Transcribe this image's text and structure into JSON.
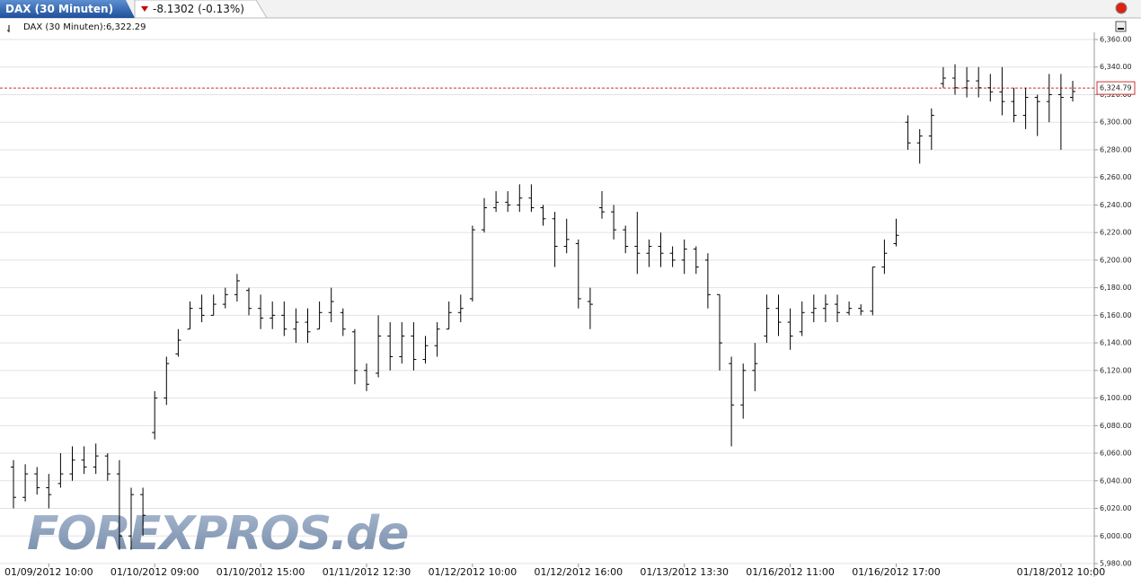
{
  "header": {
    "title": "DAX (30 Minuten)",
    "change": "-8.1302 (-0.13%)"
  },
  "chart_data": {
    "type": "ohlc",
    "legend": "DAX (30 Minuten):6,322.29",
    "watermark": "FOREXPROS.de",
    "color": "#000000",
    "grid": true,
    "last_price": {
      "value": 6324.79,
      "label": "6,324.79"
    },
    "last_price_color": "#cc3333",
    "ylim": [
      5980,
      6360
    ],
    "yticks": [
      {
        "value": 6360,
        "label": "6,360.00"
      },
      {
        "value": 6340,
        "label": "6,340.00"
      },
      {
        "value": 6320,
        "label": "6,320.00"
      },
      {
        "value": 6300,
        "label": "6,300.00"
      },
      {
        "value": 6280,
        "label": "6,280.00"
      },
      {
        "value": 6260,
        "label": "6,260.00"
      },
      {
        "value": 6240,
        "label": "6,240.00"
      },
      {
        "value": 6220,
        "label": "6,220.00"
      },
      {
        "value": 6200,
        "label": "6,200.00"
      },
      {
        "value": 6180,
        "label": "6,180.00"
      },
      {
        "value": 6160,
        "label": "6,160.00"
      },
      {
        "value": 6140,
        "label": "6,140.00"
      },
      {
        "value": 6120,
        "label": "6,120.00"
      },
      {
        "value": 6100,
        "label": "6,100.00"
      },
      {
        "value": 6080,
        "label": "6,080.00"
      },
      {
        "value": 6060,
        "label": "6,060.00"
      },
      {
        "value": 6040,
        "label": "6,040.00"
      },
      {
        "value": 6020,
        "label": "6,020.00"
      },
      {
        "value": 6000,
        "label": "6,000.00"
      },
      {
        "value": 5980,
        "label": "5,980.00"
      }
    ],
    "categories": [
      null,
      null,
      null,
      "01/09/2012 10:00",
      null,
      null,
      null,
      null,
      null,
      null,
      null,
      null,
      "01/10/2012 09:00",
      null,
      null,
      null,
      null,
      null,
      null,
      null,
      null,
      "01/10/2012 15:00",
      null,
      null,
      null,
      null,
      null,
      null,
      null,
      null,
      "01/11/2012 12:30",
      null,
      null,
      null,
      null,
      null,
      null,
      null,
      null,
      "01/12/2012 10:00",
      null,
      null,
      null,
      null,
      null,
      null,
      null,
      null,
      "01/12/2012 16:00",
      null,
      null,
      null,
      null,
      null,
      null,
      null,
      null,
      "01/13/2012 13:30",
      null,
      null,
      null,
      null,
      null,
      null,
      null,
      null,
      "01/16/2012 11:00",
      null,
      null,
      null,
      null,
      null,
      null,
      null,
      null,
      "01/16/2012 17:00",
      null,
      null,
      null,
      null,
      null,
      null,
      null,
      null,
      null,
      null,
      null,
      null,
      null,
      "01/18/2012 10:00",
      null
    ],
    "open": [
      6050,
      6028,
      6045,
      6035,
      6038,
      6045,
      6055,
      6050,
      6058,
      6045,
      6000,
      6030,
      6075,
      6100,
      6132,
      6150,
      6165,
      6160,
      6168,
      6175,
      6178,
      6165,
      6158,
      6160,
      6150,
      6155,
      6150,
      6162,
      6162,
      6148,
      6120,
      6118,
      6145,
      6130,
      6145,
      6128,
      6138,
      6150,
      6162,
      6172,
      6222,
      6238,
      6242,
      6240,
      6245,
      6238,
      6230,
      6210,
      6212,
      6170,
      6238,
      6235,
      6222,
      6210,
      6205,
      6210,
      6205,
      6200,
      6208,
      6200,
      6175,
      6125,
      6095,
      6120,
      6145,
      6165,
      6155,
      6148,
      6162,
      6165,
      6168,
      6162,
      6165,
      6163,
      6195,
      6212,
      6300,
      6285,
      6290,
      6328,
      6332,
      6325,
      6330,
      6325,
      6322,
      6315,
      6305,
      6318,
      6315,
      6320,
      6318
    ],
    "high": [
      6055,
      6052,
      6050,
      6045,
      6060,
      6065,
      6065,
      6067,
      6060,
      6055,
      6035,
      6035,
      6105,
      6130,
      6150,
      6170,
      6175,
      6175,
      6180,
      6190,
      6180,
      6175,
      6170,
      6170,
      6165,
      6165,
      6170,
      6180,
      6165,
      6150,
      6125,
      6160,
      6155,
      6155,
      6155,
      6145,
      6155,
      6170,
      6175,
      6225,
      6245,
      6250,
      6250,
      6255,
      6255,
      6240,
      6235,
      6230,
      6215,
      6180,
      6250,
      6240,
      6225,
      6235,
      6215,
      6220,
      6210,
      6215,
      6210,
      6205,
      6175,
      6130,
      6125,
      6140,
      6175,
      6175,
      6165,
      6170,
      6175,
      6175,
      6175,
      6170,
      6168,
      6195,
      6215,
      6230,
      6305,
      6295,
      6310,
      6340,
      6342,
      6340,
      6340,
      6335,
      6340,
      6325,
      6325,
      6320,
      6335,
      6335,
      6330
    ],
    "low": [
      6020,
      6025,
      6030,
      6020,
      6035,
      6040,
      6045,
      6045,
      6040,
      5990,
      5990,
      6000,
      6070,
      6095,
      6130,
      6150,
      6155,
      6160,
      6165,
      6170,
      6160,
      6150,
      6150,
      6145,
      6140,
      6140,
      6150,
      6155,
      6145,
      6110,
      6105,
      6115,
      6120,
      6125,
      6120,
      6125,
      6130,
      6150,
      6155,
      6170,
      6220,
      6235,
      6235,
      6235,
      6235,
      6225,
      6195,
      6205,
      6165,
      6150,
      6230,
      6215,
      6205,
      6190,
      6195,
      6195,
      6195,
      6190,
      6190,
      6165,
      6120,
      6065,
      6085,
      6105,
      6140,
      6145,
      6135,
      6145,
      6155,
      6155,
      6155,
      6160,
      6160,
      6160,
      6190,
      6210,
      6280,
      6270,
      6280,
      6325,
      6320,
      6318,
      6318,
      6315,
      6305,
      6300,
      6295,
      6290,
      6300,
      6280,
      6315
    ],
    "close": [
      6028,
      6045,
      6035,
      6030,
      6045,
      6055,
      6050,
      6058,
      6045,
      6000,
      6030,
      6015,
      6100,
      6125,
      6142,
      6165,
      6160,
      6168,
      6175,
      6185,
      6165,
      6158,
      6160,
      6150,
      6155,
      6148,
      6162,
      6170,
      6150,
      6120,
      6110,
      6145,
      6130,
      6145,
      6128,
      6138,
      6150,
      6162,
      6165,
      6222,
      6238,
      6242,
      6240,
      6245,
      6238,
      6230,
      6210,
      6215,
      6172,
      6168,
      6235,
      6222,
      6210,
      6205,
      6210,
      6205,
      6200,
      6208,
      6195,
      6175,
      6140,
      6095,
      6120,
      6125,
      6165,
      6155,
      6145,
      6162,
      6165,
      6168,
      6162,
      6165,
      6163,
      6195,
      6205,
      6218,
      6285,
      6290,
      6305,
      6332,
      6325,
      6330,
      6325,
      6322,
      6315,
      6305,
      6318,
      6315,
      6320,
      6318,
      6322.29
    ]
  }
}
